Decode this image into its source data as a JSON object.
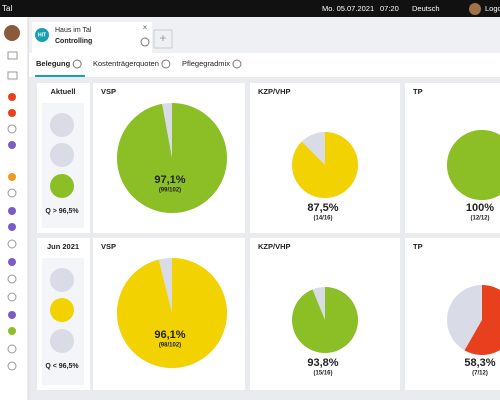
{
  "topbar": {
    "brand": "Tal",
    "date": "Mo. 05.07.2021",
    "time": "07:20",
    "language": "Deutsch",
    "logout": "Logo"
  },
  "tab": {
    "badge": "HIT",
    "title": "Haus im Tal",
    "subtitle": "Controlling"
  },
  "subtabs": [
    "Belegung",
    "Kostenträgerquoten",
    "Pflegegradmix"
  ],
  "rows": [
    {
      "period": "Aktuell",
      "status_label": "Q > 96,5%",
      "active_light": 2,
      "light_color": "#8cbf26",
      "panels": [
        {
          "title": "VSP",
          "value": 97.1,
          "value_label": "97,1%",
          "detail": "(99/102)",
          "color": "#8cbf26"
        },
        {
          "title": "KZP/VHP",
          "value": 87.5,
          "value_label": "87,5%",
          "detail": "(14/16)",
          "color": "#f2d200"
        },
        {
          "title": "TP",
          "value": 100,
          "value_label": "100%",
          "detail": "(12/12)",
          "color": "#8cbf26"
        }
      ]
    },
    {
      "period": "Jun 2021",
      "status_label": "Q < 96,5%",
      "active_light": 1,
      "light_color": "#f2d200",
      "panels": [
        {
          "title": "VSP",
          "value": 96.1,
          "value_label": "96,1%",
          "detail": "(98/102)",
          "color": "#f2d200"
        },
        {
          "title": "KZP/VHP",
          "value": 93.8,
          "value_label": "93,8%",
          "detail": "(15/16)",
          "color": "#8cbf26"
        },
        {
          "title": "TP",
          "value": 58.3,
          "value_label": "58,3%",
          "detail": "(7/12)",
          "color": "#e8401c"
        }
      ]
    }
  ]
}
